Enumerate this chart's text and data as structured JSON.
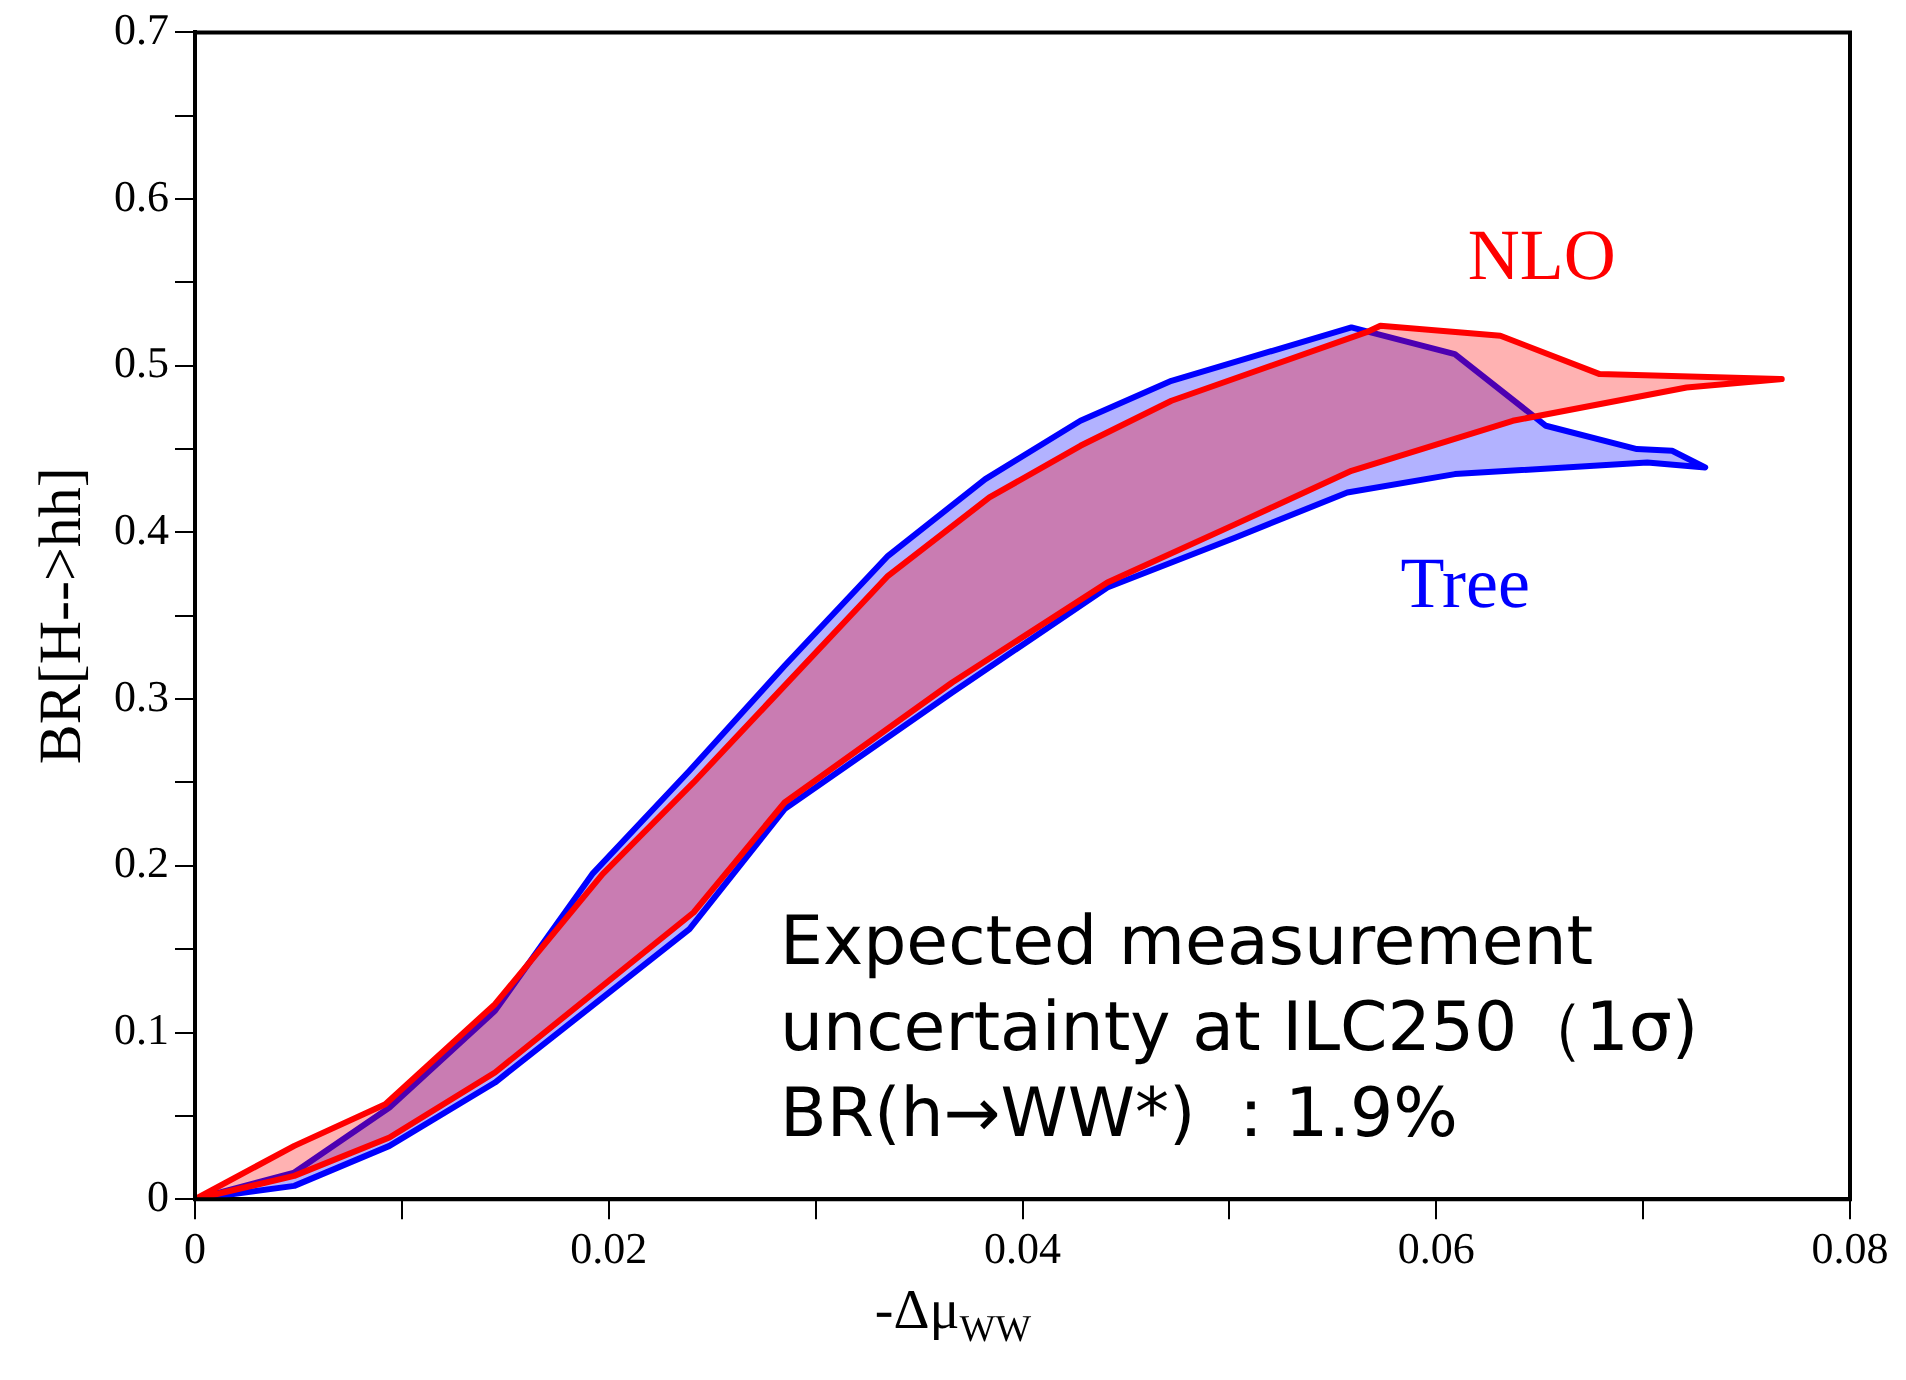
{
  "chart_data": {
    "type": "line",
    "xlabel": "-Δμ$_{WW}$",
    "ylabel": "BR[H-->hh]",
    "xlim": [
      0,
      0.08
    ],
    "xticks": [
      0,
      {
        "value": 0.01,
        "label": null
      },
      0.02,
      {
        "value": 0.03,
        "label": null
      },
      0.04,
      {
        "value": 0.05,
        "label": null
      },
      0.06,
      {
        "value": 0.07,
        "label": null
      },
      0.08
    ],
    "ylim": [
      0,
      0.7
    ],
    "yticks": [
      0,
      {
        "value": 0.05,
        "label": null
      },
      0.1,
      {
        "value": 0.15,
        "label": null
      },
      0.2,
      {
        "value": 0.25,
        "label": null
      },
      0.3,
      {
        "value": 0.35,
        "label": null
      },
      0.4,
      {
        "value": 0.45,
        "label": null
      },
      0.5,
      {
        "value": 0.55,
        "label": null
      },
      0.6,
      {
        "value": 0.65,
        "label": null
      },
      0.7
    ],
    "grid": false,
    "legend": false,
    "marker": "none",
    "line_style": "solid",
    "series": [
      {
        "name": "NLO",
        "type": "area",
        "color": "#ff0000",
        "x": [
          0,
          0.0048,
          0.0092,
          0.0145,
          0.0197,
          0.0241,
          0.0288,
          0.0335,
          0.0384,
          0.0428,
          0.0472,
          0.0566,
          0.0573,
          0.0631,
          0.0679,
          0.0767,
          0.0721,
          0.0637,
          0.0559,
          0.0503,
          0.0441,
          0.0366,
          0.0285,
          0.0241,
          0.0145,
          0.0094,
          0.0048,
          0
        ],
        "values": [
          0,
          0.032,
          0.057,
          0.117,
          0.195,
          0.25,
          0.312,
          0.374,
          0.421,
          0.452,
          0.479,
          0.52,
          0.524,
          0.518,
          0.495,
          0.492,
          0.487,
          0.467,
          0.437,
          0.405,
          0.37,
          0.31,
          0.238,
          0.172,
          0.076,
          0.037,
          0.014,
          0
        ]
      },
      {
        "name": "Tree",
        "type": "area",
        "color": "#0000ff",
        "x": [
          0,
          0.0048,
          0.0094,
          0.0145,
          0.0192,
          0.0239,
          0.0285,
          0.0335,
          0.0382,
          0.0428,
          0.0472,
          0.0559,
          0.0609,
          0.0653,
          0.0697,
          0.0714,
          0.073,
          0.0702,
          0.0609,
          0.0557,
          0.0503,
          0.0441,
          0.0366,
          0.0285,
          0.0239,
          0.0145,
          0.0094,
          0.0048,
          0
        ],
        "values": [
          0,
          0.016,
          0.055,
          0.113,
          0.195,
          0.257,
          0.32,
          0.386,
          0.432,
          0.467,
          0.491,
          0.523,
          0.507,
          0.464,
          0.45,
          0.449,
          0.439,
          0.442,
          0.435,
          0.424,
          0.397,
          0.367,
          0.304,
          0.234,
          0.162,
          0.07,
          0.032,
          0.008,
          0
        ]
      }
    ],
    "annotations": [
      "Expected measurement",
      "uncertainty at ILC250（1σ)",
      "BR(h→WW*) ：1.9%"
    ]
  }
}
